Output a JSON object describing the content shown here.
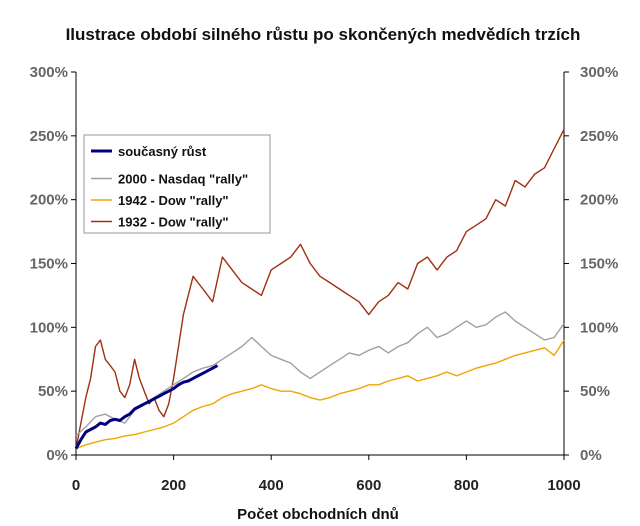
{
  "chart_data": {
    "type": "line",
    "title": "Ilustrace období silného růstu po skončených medvědích trzích",
    "xlabel": "Počet obchodních dnů",
    "ylabel": "",
    "xlim": [
      0,
      1000
    ],
    "ylim": [
      0,
      300
    ],
    "x_ticks": [
      "0",
      "200",
      "400",
      "600",
      "800",
      "1000"
    ],
    "y_ticks": [
      "0%",
      "50%",
      "100%",
      "150%",
      "200%",
      "250%",
      "300%"
    ],
    "grid": false,
    "secondary_y_axis": true,
    "legend_position": "top-left",
    "series": [
      {
        "name": "současný růst",
        "color": "#000080",
        "x": [
          0,
          10,
          20,
          30,
          40,
          50,
          60,
          70,
          80,
          90,
          100,
          110,
          120,
          130,
          140,
          150,
          160,
          170,
          180,
          190,
          200,
          210,
          220,
          230,
          240,
          250,
          260,
          270,
          280,
          290
        ],
        "y": [
          5,
          12,
          18,
          20,
          22,
          25,
          24,
          27,
          28,
          27,
          30,
          32,
          36,
          38,
          40,
          42,
          44,
          46,
          48,
          50,
          52,
          55,
          57,
          58,
          60,
          62,
          64,
          66,
          68,
          70
        ]
      },
      {
        "name": "2000 - Nasdaq \"rally\"",
        "color": "#a0a0a0",
        "x": [
          0,
          20,
          40,
          60,
          80,
          100,
          120,
          140,
          160,
          180,
          200,
          220,
          240,
          260,
          280,
          300,
          320,
          340,
          360,
          380,
          400,
          420,
          440,
          460,
          480,
          500,
          520,
          540,
          560,
          580,
          600,
          620,
          640,
          660,
          680,
          700,
          720,
          740,
          760,
          780,
          800,
          820,
          840,
          860,
          880,
          900,
          920,
          940,
          960,
          980,
          1000
        ],
        "y": [
          15,
          22,
          30,
          32,
          28,
          25,
          35,
          40,
          45,
          50,
          55,
          60,
          65,
          68,
          70,
          75,
          80,
          85,
          92,
          85,
          78,
          75,
          72,
          65,
          60,
          65,
          70,
          75,
          80,
          78,
          82,
          85,
          80,
          85,
          88,
          95,
          100,
          92,
          95,
          100,
          105,
          100,
          102,
          108,
          112,
          105,
          100,
          95,
          90,
          92,
          103
        ]
      },
      {
        "name": "1942 - Dow \"rally\"",
        "color": "#f0a500",
        "x": [
          0,
          20,
          40,
          60,
          80,
          100,
          120,
          140,
          160,
          180,
          200,
          220,
          240,
          260,
          280,
          300,
          320,
          340,
          360,
          380,
          400,
          420,
          440,
          460,
          480,
          500,
          520,
          540,
          560,
          580,
          600,
          620,
          640,
          660,
          680,
          700,
          720,
          740,
          760,
          780,
          800,
          820,
          840,
          860,
          880,
          900,
          920,
          940,
          960,
          980,
          1000
        ],
        "y": [
          5,
          8,
          10,
          12,
          13,
          15,
          16,
          18,
          20,
          22,
          25,
          30,
          35,
          38,
          40,
          45,
          48,
          50,
          52,
          55,
          52,
          50,
          50,
          48,
          45,
          43,
          45,
          48,
          50,
          52,
          55,
          55,
          58,
          60,
          62,
          58,
          60,
          62,
          65,
          62,
          65,
          68,
          70,
          72,
          75,
          78,
          80,
          82,
          84,
          78,
          90
        ]
      },
      {
        "name": "1932 - Dow \"rally\"",
        "color": "#a03010",
        "x": [
          0,
          10,
          20,
          30,
          40,
          50,
          60,
          70,
          80,
          90,
          100,
          110,
          120,
          130,
          140,
          150,
          160,
          170,
          180,
          190,
          200,
          220,
          240,
          260,
          280,
          300,
          320,
          340,
          360,
          380,
          400,
          420,
          440,
          460,
          480,
          500,
          520,
          540,
          560,
          580,
          600,
          620,
          640,
          660,
          680,
          700,
          720,
          740,
          760,
          780,
          800,
          820,
          840,
          860,
          880,
          900,
          920,
          940,
          960,
          980,
          1000
        ],
        "y": [
          5,
          25,
          45,
          60,
          85,
          90,
          75,
          70,
          65,
          50,
          45,
          55,
          75,
          60,
          50,
          40,
          45,
          35,
          30,
          40,
          60,
          110,
          140,
          130,
          120,
          155,
          145,
          135,
          130,
          125,
          145,
          150,
          155,
          165,
          150,
          140,
          135,
          130,
          125,
          120,
          110,
          120,
          125,
          135,
          130,
          150,
          155,
          145,
          155,
          160,
          175,
          180,
          185,
          200,
          195,
          215,
          210,
          220,
          225,
          240,
          255
        ]
      }
    ]
  }
}
